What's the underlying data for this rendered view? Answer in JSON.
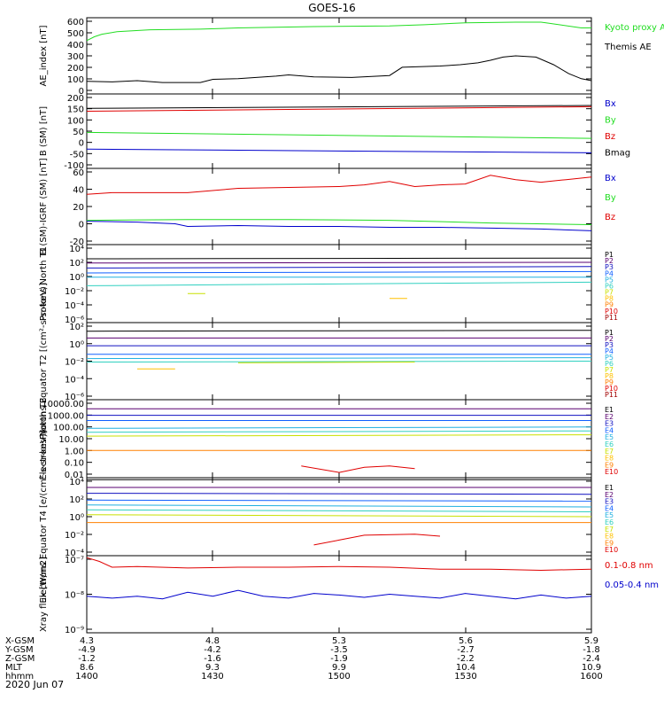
{
  "title": "GOES-16",
  "date": "2020 Jun 07",
  "footer": {
    "rows": [
      {
        "label": "X-GSM",
        "values": [
          "4.3",
          "4.8",
          "5.3",
          "5.6",
          "5.9"
        ]
      },
      {
        "label": "Y-GSM",
        "values": [
          "-4.9",
          "-4.2",
          "-3.5",
          "-2.7",
          "-1.8"
        ]
      },
      {
        "label": "Z-GSM",
        "values": [
          "-1.2",
          "-1.6",
          "-1.9",
          "-2.2",
          "-2.4"
        ]
      },
      {
        "label": "MLT",
        "values": [
          "8.6",
          "9.3",
          "9.9",
          "10.4",
          "10.9"
        ]
      },
      {
        "label": "hhmm",
        "values": [
          "1400",
          "1430",
          "1500",
          "1530",
          "1600"
        ]
      }
    ]
  },
  "colors": {
    "black": "#000000",
    "red": "#e00000",
    "green": "#22dd22",
    "blue": "#0000cc",
    "P1": "#000000",
    "P2": "#5a0070",
    "P3": "#1010c0",
    "P4": "#1060ff",
    "P5": "#20b0e0",
    "P6": "#30d0c0",
    "P7": "#c8e000",
    "P8": "#ffc000",
    "P9": "#ff8000",
    "P10": "#e00000",
    "P11": "#a00000"
  },
  "chart_data": [
    {
      "type": "line",
      "ylabel": "AE_index [nT]",
      "yticks": [
        "600",
        "500",
        "400",
        "300",
        "200",
        "100",
        "0"
      ],
      "ylim": [
        0,
        600
      ],
      "legend": [
        {
          "label": "Kyoto proxy AE",
          "color": "green"
        },
        {
          "label": "Themis AE",
          "color": "black"
        }
      ],
      "series": [
        {
          "name": "Kyoto proxy AE",
          "color": "green",
          "x": [
            0,
            3,
            6,
            12,
            25,
            45,
            60,
            90,
            120,
            134,
            150,
            170,
            180,
            182,
            196,
            200
          ],
          "y": [
            420,
            450,
            470,
            490,
            505,
            510,
            520,
            530,
            535,
            545,
            560,
            565,
            565,
            560,
            520,
            520
          ]
        },
        {
          "name": "Themis AE",
          "color": "black",
          "x": [
            0,
            10,
            20,
            30,
            45,
            50,
            60,
            75,
            80,
            90,
            105,
            120,
            125,
            140,
            148,
            155,
            160,
            165,
            170,
            178,
            185,
            191,
            196,
            200
          ],
          "y": [
            100,
            95,
            105,
            90,
            90,
            115,
            120,
            140,
            150,
            135,
            130,
            145,
            210,
            220,
            230,
            245,
            265,
            290,
            300,
            290,
            230,
            160,
            120,
            105
          ]
        }
      ]
    },
    {
      "type": "line",
      "ylabel": "B (SM) [nT]",
      "yticks": [
        "200",
        "150",
        "100",
        "50",
        "0",
        "-50",
        "-100"
      ],
      "ylim": [
        -110,
        200
      ],
      "legend": [
        {
          "label": "Bx",
          "color": "blue"
        },
        {
          "label": "By",
          "color": "green"
        },
        {
          "label": "Bz",
          "color": "red"
        },
        {
          "label": "Bmag",
          "color": "black"
        }
      ],
      "series": [
        {
          "name": "Bx",
          "color": "blue",
          "x": [
            0,
            200
          ],
          "y": [
            -30,
            -45
          ]
        },
        {
          "name": "By",
          "color": "green",
          "x": [
            0,
            200
          ],
          "y": [
            40,
            15
          ]
        },
        {
          "name": "Bz",
          "color": "red",
          "x": [
            0,
            200
          ],
          "y": [
            128,
            147
          ]
        },
        {
          "name": "Bmag",
          "color": "black",
          "x": [
            0,
            200
          ],
          "y": [
            140,
            152
          ]
        }
      ]
    },
    {
      "type": "line",
      "ylabel": "B (SM)-IGRF (SM) [nT]",
      "yticks": [
        "60",
        "40",
        "20",
        "0",
        "-20"
      ],
      "ylim": [
        -22,
        66
      ],
      "legend": [
        {
          "label": "Bx",
          "color": "blue"
        },
        {
          "label": "By",
          "color": "green"
        },
        {
          "label": "Bz",
          "color": "red"
        }
      ],
      "series": [
        {
          "name": "Bx",
          "color": "blue",
          "x": [
            0,
            20,
            35,
            40,
            60,
            80,
            100,
            120,
            140,
            160,
            180,
            200
          ],
          "y": [
            5,
            4,
            2,
            -1,
            0,
            -1,
            -1,
            -2,
            -2,
            -3,
            -4,
            -6
          ]
        },
        {
          "name": "By",
          "color": "green",
          "x": [
            0,
            40,
            80,
            120,
            160,
            200
          ],
          "y": [
            6,
            7,
            7,
            6,
            3,
            1
          ]
        },
        {
          "name": "Bz",
          "color": "red",
          "x": [
            0,
            10,
            20,
            40,
            60,
            80,
            100,
            110,
            120,
            125,
            130,
            140,
            150,
            160,
            170,
            180,
            190,
            200
          ],
          "y": [
            36,
            38,
            38,
            38,
            43,
            44,
            45,
            47,
            51,
            48,
            45,
            47,
            48,
            58,
            53,
            50,
            53,
            56
          ]
        }
      ]
    },
    {
      "type": "line",
      "ylabel": "Protons North T1",
      "yticks": [
        "10⁴",
        "10²",
        "10⁰",
        "10⁻²",
        "10⁻⁴",
        "10⁻⁶"
      ],
      "ylim": [
        -7,
        4
      ],
      "legend": [
        {
          "label": "P1",
          "color": "P1"
        },
        {
          "label": "P2",
          "color": "P2"
        },
        {
          "label": "P3",
          "color": "P3"
        },
        {
          "label": "P4",
          "color": "P4"
        },
        {
          "label": "P5",
          "color": "P5"
        },
        {
          "label": "P6",
          "color": "P6"
        },
        {
          "label": "P7",
          "color": "P7"
        },
        {
          "label": "P8",
          "color": "P8"
        },
        {
          "label": "P9",
          "color": "P9"
        },
        {
          "label": "P10",
          "color": "P10"
        },
        {
          "label": "P11",
          "color": "P11"
        }
      ],
      "series": [
        {
          "name": "P1",
          "color": "P1",
          "x": [
            0,
            200
          ],
          "y": [
            2.0,
            2.1
          ]
        },
        {
          "name": "P2",
          "color": "P2",
          "x": [
            0,
            200
          ],
          "y": [
            1.4,
            1.5
          ]
        },
        {
          "name": "P3",
          "color": "P3",
          "x": [
            0,
            200
          ],
          "y": [
            0.7,
            0.9
          ]
        },
        {
          "name": "P4",
          "color": "P4",
          "x": [
            0,
            200
          ],
          "y": [
            0.0,
            0.2
          ]
        },
        {
          "name": "P5",
          "color": "P5",
          "x": [
            0,
            200
          ],
          "y": [
            -0.6,
            -0.6
          ]
        },
        {
          "name": "P6",
          "color": "P6",
          "x": [
            0,
            200
          ],
          "y": [
            -1.8,
            -1.3
          ]
        },
        {
          "name": "P7",
          "color": "P7",
          "x": [
            40,
            47
          ],
          "y": [
            -2.9,
            -2.9
          ]
        },
        {
          "name": "P8",
          "color": "P8",
          "x": [
            120,
            127
          ],
          "y": [
            -3.6,
            -3.6
          ]
        }
      ]
    },
    {
      "type": "line",
      "ylabel": "Protons Equator T2 [(cm²-s-sr-keV)]",
      "yticks": [
        "10²",
        "10⁰",
        "10⁻²",
        "10⁻⁴",
        "10⁻⁶"
      ],
      "ylim": [
        -7,
        2
      ],
      "legend": [
        {
          "label": "P1",
          "color": "P1"
        },
        {
          "label": "P2",
          "color": "P2"
        },
        {
          "label": "P3",
          "color": "P3"
        },
        {
          "label": "P4",
          "color": "P4"
        },
        {
          "label": "P5",
          "color": "P5"
        },
        {
          "label": "P6",
          "color": "P6"
        },
        {
          "label": "P7",
          "color": "P7"
        },
        {
          "label": "P8",
          "color": "P8"
        },
        {
          "label": "P9",
          "color": "P9"
        },
        {
          "label": "P10",
          "color": "P10"
        },
        {
          "label": "P11",
          "color": "P11"
        }
      ],
      "series": [
        {
          "name": "P1",
          "color": "P1",
          "x": [
            0,
            200
          ],
          "y": [
            1.0,
            1.1
          ]
        },
        {
          "name": "P2",
          "color": "P2",
          "x": [
            0,
            200
          ],
          "y": [
            0.2,
            0.2
          ]
        },
        {
          "name": "P3",
          "color": "P3",
          "x": [
            0,
            200
          ],
          "y": [
            -0.7,
            -0.7
          ]
        },
        {
          "name": "P4",
          "color": "P4",
          "x": [
            0,
            200
          ],
          "y": [
            -1.7,
            -1.7
          ]
        },
        {
          "name": "P5",
          "color": "P5",
          "x": [
            0,
            200
          ],
          "y": [
            -2.2,
            -2.1
          ]
        },
        {
          "name": "P6",
          "color": "P6",
          "x": [
            0,
            200
          ],
          "y": [
            -2.6,
            -2.5
          ]
        },
        {
          "name": "P7",
          "color": "P7",
          "x": [
            60,
            130
          ],
          "y": [
            -2.7,
            -2.6
          ]
        },
        {
          "name": "P8",
          "color": "P8",
          "x": [
            20,
            35
          ],
          "y": [
            -3.4,
            -3.4
          ]
        }
      ]
    },
    {
      "type": "line",
      "ylabel": "Electrons North T3",
      "yticks": [
        "10000.00",
        "1000.00",
        "100.00",
        "10.00",
        "1.00",
        "0.10",
        "0.01"
      ],
      "ylim": [
        -2,
        4
      ],
      "legend": [
        {
          "label": "E1",
          "color": "P1"
        },
        {
          "label": "E2",
          "color": "P2"
        },
        {
          "label": "E3",
          "color": "P3"
        },
        {
          "label": "E4",
          "color": "P4"
        },
        {
          "label": "E5",
          "color": "P5"
        },
        {
          "label": "E6",
          "color": "P6"
        },
        {
          "label": "E7",
          "color": "P7"
        },
        {
          "label": "E8",
          "color": "P8"
        },
        {
          "label": "E9",
          "color": "P9"
        },
        {
          "label": "E10",
          "color": "P10"
        }
      ],
      "series": [
        {
          "name": "E1",
          "color": "P1",
          "x": [
            0,
            200
          ],
          "y": [
            4.0,
            4.0
          ]
        },
        {
          "name": "E2",
          "color": "P2",
          "x": [
            0,
            200
          ],
          "y": [
            3.3,
            3.3
          ]
        },
        {
          "name": "E3",
          "color": "P3",
          "x": [
            0,
            200
          ],
          "y": [
            2.8,
            2.8
          ]
        },
        {
          "name": "E4",
          "color": "P4",
          "x": [
            0,
            200
          ],
          "y": [
            2.4,
            2.4
          ]
        },
        {
          "name": "E5",
          "color": "P5",
          "x": [
            0,
            200
          ],
          "y": [
            1.8,
            1.9
          ]
        },
        {
          "name": "E6",
          "color": "P6",
          "x": [
            0,
            200
          ],
          "y": [
            1.5,
            1.6
          ]
        },
        {
          "name": "E7",
          "color": "P7",
          "x": [
            0,
            200
          ],
          "y": [
            1.2,
            1.3
          ]
        },
        {
          "name": "E8",
          "color": "P9",
          "x": [
            0,
            200
          ],
          "y": [
            0.1,
            0.1
          ]
        },
        {
          "name": "E9",
          "color": "P10",
          "x": [
            85,
            100,
            110,
            120,
            130
          ],
          "y": [
            -1.1,
            -1.6,
            -1.2,
            -1.1,
            -1.3
          ]
        }
      ]
    },
    {
      "type": "line",
      "ylabel": "Electrons Equator T4 [e/(cm²-s-sr-keV)]",
      "yticks": [
        "10⁴",
        "10²",
        "10⁰",
        "10⁻²",
        "10⁻⁴"
      ],
      "ylim": [
        -4,
        4
      ],
      "legend": [
        {
          "label": "E1",
          "color": "P1"
        },
        {
          "label": "E2",
          "color": "P2"
        },
        {
          "label": "E3",
          "color": "P3"
        },
        {
          "label": "E4",
          "color": "P4"
        },
        {
          "label": "E5",
          "color": "P5"
        },
        {
          "label": "E6",
          "color": "P6"
        },
        {
          "label": "E7",
          "color": "P7"
        },
        {
          "label": "E8",
          "color": "P8"
        },
        {
          "label": "E9",
          "color": "P9"
        },
        {
          "label": "E10",
          "color": "P10"
        }
      ],
      "series": [
        {
          "name": "E1",
          "color": "P1",
          "x": [
            0,
            200
          ],
          "y": [
            3.8,
            3.8
          ]
        },
        {
          "name": "E2",
          "color": "P2",
          "x": [
            0,
            200
          ],
          "y": [
            3.0,
            3.0
          ]
        },
        {
          "name": "E3",
          "color": "P3",
          "x": [
            0,
            200
          ],
          "y": [
            2.4,
            2.3
          ]
        },
        {
          "name": "E4",
          "color": "P4",
          "x": [
            0,
            200
          ],
          "y": [
            1.7,
            1.6
          ]
        },
        {
          "name": "E5",
          "color": "P5",
          "x": [
            0,
            200
          ],
          "y": [
            1.2,
            1.0
          ]
        },
        {
          "name": "E6",
          "color": "P6",
          "x": [
            0,
            200
          ],
          "y": [
            0.7,
            0.5
          ]
        },
        {
          "name": "E7",
          "color": "P7",
          "x": [
            0,
            200
          ],
          "y": [
            0.2,
            0.0
          ]
        },
        {
          "name": "E8",
          "color": "P9",
          "x": [
            0,
            200
          ],
          "y": [
            -0.6,
            -0.6
          ]
        },
        {
          "name": "E9",
          "color": "P10",
          "x": [
            90,
            100,
            110,
            130,
            140
          ],
          "y": [
            -2.9,
            -2.4,
            -1.9,
            -1.8,
            -2.0
          ]
        }
      ]
    },
    {
      "type": "line",
      "ylabel": "Xray flux [W/m2]",
      "yticks": [
        "10⁻⁷",
        "10⁻⁸",
        "10⁻⁹"
      ],
      "ylim": [
        -9,
        -7
      ],
      "legend": [
        {
          "label": "0.1-0.8 nm",
          "color": "red"
        },
        {
          "label": "0.05-0.4 nm",
          "color": "blue"
        }
      ],
      "series": [
        {
          "name": "0.1-0.8 nm",
          "color": "red",
          "x": [
            0,
            5,
            10,
            20,
            40,
            60,
            80,
            100,
            120,
            140,
            160,
            180,
            200
          ],
          "y": [
            -7.05,
            -7.15,
            -7.3,
            -7.28,
            -7.32,
            -7.3,
            -7.3,
            -7.28,
            -7.3,
            -7.35,
            -7.35,
            -7.38,
            -7.35
          ]
        },
        {
          "name": "0.05-0.4 nm",
          "color": "blue",
          "x": [
            0,
            10,
            20,
            30,
            40,
            50,
            60,
            70,
            80,
            90,
            100,
            110,
            120,
            130,
            140,
            150,
            160,
            170,
            180,
            190,
            200
          ],
          "y": [
            -8.05,
            -8.1,
            -8.05,
            -8.12,
            -7.95,
            -8.05,
            -7.9,
            -8.05,
            -8.1,
            -7.98,
            -8.02,
            -8.08,
            -8.0,
            -8.05,
            -8.1,
            -7.98,
            -8.05,
            -8.12,
            -8.02,
            -8.1,
            -8.05
          ]
        }
      ]
    }
  ]
}
